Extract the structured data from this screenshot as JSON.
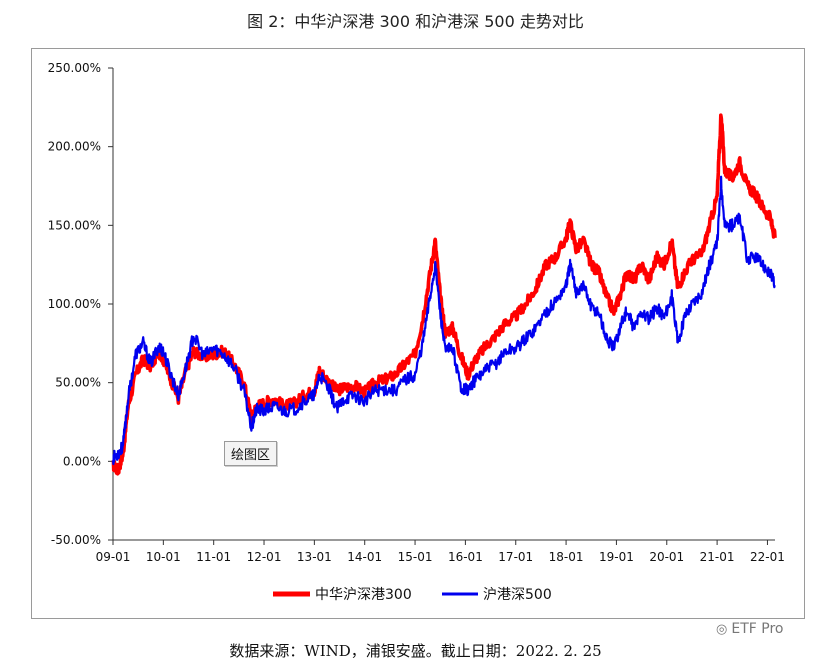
{
  "page": {
    "title": "图 2：中华沪深港 300 和沪港深 500 走势对比",
    "source_note": "数据来源：WIND，浦银安盛。截止日期：2022. 2. 25",
    "plot_area_label": "绘图区",
    "watermark": "ETF Pro"
  },
  "colors": {
    "series1": "#ff0000",
    "series2": "#0000ee",
    "axis": "#333333"
  },
  "chart_data": {
    "type": "line",
    "title": "图 2：中华沪深港 300 和沪港深 500 走势对比",
    "xlabel": "",
    "ylabel": "",
    "ylim": [
      -50,
      250
    ],
    "xlim": [
      2009.0,
      2022.15
    ],
    "y_ticks": [
      "250.00%",
      "200.00%",
      "150.00%",
      "100.00%",
      "50.00%",
      "0.00%",
      "-50.00%"
    ],
    "x_ticks": [
      "09-01",
      "10-01",
      "11-01",
      "12-01",
      "13-01",
      "14-01",
      "15-01",
      "16-01",
      "17-01",
      "18-01",
      "19-01",
      "20-01",
      "21-01",
      "22-01"
    ],
    "legend_position": "bottom",
    "series": [
      {
        "name": "中华沪深港300",
        "x": [
          2009.0,
          2009.1,
          2009.2,
          2009.3,
          2009.45,
          2009.6,
          2009.75,
          2009.9,
          2010.0,
          2010.15,
          2010.3,
          2010.45,
          2010.6,
          2010.8,
          2011.0,
          2011.2,
          2011.4,
          2011.6,
          2011.75,
          2011.85,
          2012.0,
          2012.2,
          2012.4,
          2012.6,
          2012.8,
          2013.0,
          2013.1,
          2013.3,
          2013.45,
          2013.6,
          2013.8,
          2014.0,
          2014.2,
          2014.4,
          2014.6,
          2014.8,
          2015.0,
          2015.15,
          2015.3,
          2015.4,
          2015.5,
          2015.6,
          2015.75,
          2015.9,
          2016.05,
          2016.2,
          2016.4,
          2016.6,
          2016.8,
          2017.0,
          2017.2,
          2017.4,
          2017.6,
          2017.8,
          2018.0,
          2018.08,
          2018.2,
          2018.35,
          2018.5,
          2018.65,
          2018.8,
          2018.95,
          2019.1,
          2019.2,
          2019.35,
          2019.5,
          2019.65,
          2019.8,
          2019.95,
          2020.1,
          2020.22,
          2020.35,
          2020.5,
          2020.7,
          2020.85,
          2021.0,
          2021.08,
          2021.15,
          2021.3,
          2021.45,
          2021.6,
          2021.75,
          2021.9,
          2022.05,
          2022.15
        ],
        "values": [
          -2,
          -6,
          5,
          35,
          55,
          65,
          60,
          70,
          65,
          52,
          40,
          58,
          70,
          66,
          68,
          70,
          62,
          50,
          28,
          35,
          37,
          40,
          35,
          37,
          42,
          45,
          58,
          50,
          45,
          47,
          48,
          44,
          50,
          52,
          55,
          62,
          68,
          90,
          120,
          140,
          105,
          82,
          85,
          68,
          55,
          65,
          73,
          80,
          88,
          92,
          100,
          110,
          125,
          130,
          142,
          152,
          135,
          140,
          125,
          120,
          105,
          95,
          108,
          120,
          115,
          125,
          115,
          130,
          125,
          140,
          110,
          120,
          128,
          132,
          150,
          168,
          222,
          185,
          180,
          190,
          175,
          170,
          162,
          155,
          142
        ]
      },
      {
        "name": "沪港深500",
        "x": [
          2009.0,
          2009.1,
          2009.2,
          2009.3,
          2009.45,
          2009.6,
          2009.75,
          2009.9,
          2010.0,
          2010.15,
          2010.3,
          2010.45,
          2010.6,
          2010.8,
          2011.0,
          2011.2,
          2011.4,
          2011.6,
          2011.75,
          2011.85,
          2012.0,
          2012.2,
          2012.4,
          2012.6,
          2012.8,
          2013.0,
          2013.1,
          2013.3,
          2013.45,
          2013.6,
          2013.8,
          2014.0,
          2014.2,
          2014.4,
          2014.6,
          2014.8,
          2015.0,
          2015.15,
          2015.3,
          2015.4,
          2015.5,
          2015.6,
          2015.75,
          2015.9,
          2016.05,
          2016.2,
          2016.4,
          2016.6,
          2016.8,
          2017.0,
          2017.2,
          2017.4,
          2017.6,
          2017.8,
          2018.0,
          2018.08,
          2018.2,
          2018.35,
          2018.5,
          2018.65,
          2018.8,
          2018.95,
          2019.1,
          2019.2,
          2019.35,
          2019.5,
          2019.65,
          2019.8,
          2019.95,
          2020.1,
          2020.22,
          2020.35,
          2020.5,
          2020.7,
          2020.85,
          2021.0,
          2021.08,
          2021.15,
          2021.3,
          2021.45,
          2021.6,
          2021.75,
          2021.9,
          2022.05,
          2022.15
        ],
        "values": [
          2,
          5,
          10,
          40,
          68,
          75,
          62,
          73,
          70,
          55,
          42,
          60,
          80,
          67,
          72,
          68,
          60,
          45,
          22,
          33,
          32,
          35,
          32,
          33,
          38,
          42,
          55,
          45,
          33,
          40,
          42,
          38,
          45,
          46,
          45,
          52,
          55,
          75,
          105,
          125,
          95,
          70,
          72,
          48,
          45,
          52,
          58,
          62,
          70,
          72,
          78,
          85,
          95,
          102,
          112,
          125,
          108,
          112,
          98,
          95,
          78,
          72,
          88,
          95,
          85,
          95,
          90,
          98,
          92,
          105,
          75,
          92,
          100,
          108,
          125,
          138,
          178,
          150,
          150,
          155,
          128,
          130,
          125,
          120,
          112
        ]
      }
    ]
  }
}
